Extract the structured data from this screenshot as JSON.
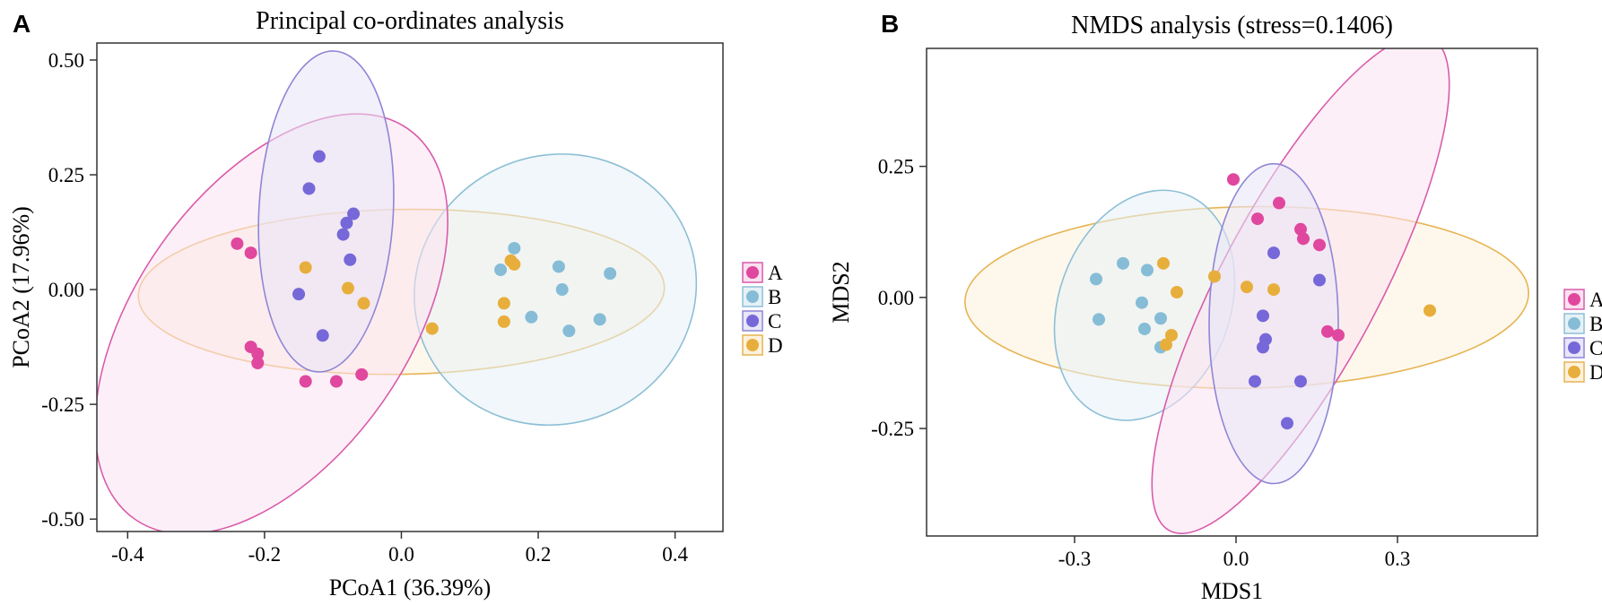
{
  "figure": {
    "groups": [
      {
        "key": "A",
        "label": "A",
        "color": "#e0479e",
        "fill": "#fbe1f0",
        "stroke": "#d85cab"
      },
      {
        "key": "B",
        "label": "B",
        "color": "#86bcd6",
        "fill": "#e6f1f6",
        "stroke": "#8dbfd6"
      },
      {
        "key": "C",
        "label": "C",
        "color": "#7668d8",
        "fill": "#e8e6f8",
        "stroke": "#8f86d6"
      },
      {
        "key": "D",
        "label": "D",
        "color": "#e8ae3c",
        "fill": "#fdf2dd",
        "stroke": "#e6b453"
      }
    ]
  },
  "chart_data": [
    {
      "panel": "A",
      "type": "scatter",
      "title": "Principal co-ordinates analysis",
      "xlabel": "PCoA1 (36.39%)",
      "ylabel": "PCoA2 (17.96%)",
      "xlim": [
        -0.445,
        0.47
      ],
      "ylim": [
        -0.527,
        0.537
      ],
      "xticks": [
        -0.4,
        -0.2,
        0.0,
        0.2,
        0.4
      ],
      "xtick_labels": [
        "-0.4",
        "-0.2",
        "0.0",
        "0.2",
        "0.4"
      ],
      "yticks": [
        -0.5,
        -0.25,
        0.0,
        0.25,
        0.5
      ],
      "ytick_labels": [
        "-0.50",
        "-0.25",
        "0.00",
        "0.25",
        "0.50"
      ],
      "grid": false,
      "legend_position": "right",
      "series": [
        {
          "group": "A",
          "points": [
            [
              -0.24,
              0.1
            ],
            [
              -0.22,
              0.08
            ],
            [
              -0.22,
              -0.125
            ],
            [
              -0.21,
              -0.14
            ],
            [
              -0.21,
              -0.16
            ],
            [
              -0.14,
              -0.2
            ],
            [
              -0.095,
              -0.2
            ],
            [
              -0.058,
              -0.185
            ]
          ],
          "ellipse": {
            "cx": -0.19,
            "cy": -0.075,
            "rx": 0.31,
            "ry": 0.165,
            "angle": -55
          }
        },
        {
          "group": "B",
          "points": [
            [
              0.145,
              0.043
            ],
            [
              0.165,
              0.09
            ],
            [
              0.23,
              0.05
            ],
            [
              0.235,
              0.0
            ],
            [
              0.305,
              0.035
            ],
            [
              0.19,
              -0.06
            ],
            [
              0.245,
              -0.09
            ],
            [
              0.29,
              -0.065
            ]
          ],
          "ellipse": {
            "cx": 0.225,
            "cy": 0.0,
            "rx": 0.175,
            "ry": 0.19,
            "angle": -25
          }
        },
        {
          "group": "C",
          "points": [
            [
              -0.12,
              0.29
            ],
            [
              -0.135,
              0.22
            ],
            [
              -0.07,
              0.165
            ],
            [
              -0.08,
              0.145
            ],
            [
              -0.085,
              0.12
            ],
            [
              -0.075,
              0.065
            ],
            [
              -0.15,
              -0.01
            ],
            [
              -0.115,
              -0.1
            ]
          ],
          "ellipse": {
            "cx": -0.11,
            "cy": 0.17,
            "rx": 0.325,
            "ry": 0.095,
            "angle": -87
          }
        },
        {
          "group": "D",
          "points": [
            [
              -0.14,
              0.048
            ],
            [
              -0.078,
              0.003
            ],
            [
              -0.055,
              -0.03
            ],
            [
              0.045,
              -0.085
            ],
            [
              0.15,
              -0.03
            ],
            [
              0.15,
              -0.07
            ],
            [
              0.16,
              0.063
            ],
            [
              0.165,
              0.055
            ]
          ],
          "ellipse": {
            "cx": 0.0,
            "cy": -0.005,
            "rx": 0.38,
            "ry": 0.175,
            "angle": -1
          }
        }
      ]
    },
    {
      "panel": "B",
      "type": "scatter",
      "title": "NMDS analysis (stress=0.1406)",
      "xlabel": "MDS1",
      "ylabel": "MDS2",
      "xlim": [
        -0.575,
        0.56
      ],
      "ylim": [
        -0.455,
        0.475
      ],
      "xticks": [
        -0.3,
        0.0,
        0.3
      ],
      "xtick_labels": [
        "-0.3",
        "0.0",
        "0.3"
      ],
      "yticks": [
        -0.25,
        0.0,
        0.25
      ],
      "ytick_labels": [
        "-0.25",
        "0.00",
        "0.25"
      ],
      "grid": false,
      "legend_position": "right",
      "series": [
        {
          "group": "A",
          "points": [
            [
              -0.005,
              0.225
            ],
            [
              0.08,
              0.18
            ],
            [
              0.04,
              0.15
            ],
            [
              0.12,
              0.13
            ],
            [
              0.125,
              0.112
            ],
            [
              0.155,
              0.1
            ],
            [
              0.17,
              -0.065
            ],
            [
              0.19,
              -0.072
            ]
          ],
          "ellipse": {
            "cx": 0.12,
            "cy": 0.025,
            "rx": 0.39,
            "ry": 0.11,
            "angle": -62
          }
        },
        {
          "group": "B",
          "points": [
            [
              -0.26,
              0.035
            ],
            [
              -0.21,
              0.065
            ],
            [
              -0.165,
              0.052
            ],
            [
              -0.175,
              -0.01
            ],
            [
              -0.14,
              -0.04
            ],
            [
              -0.255,
              -0.042
            ],
            [
              -0.17,
              -0.06
            ],
            [
              -0.14,
              -0.095
            ]
          ],
          "ellipse": {
            "cx": -0.17,
            "cy": -0.015,
            "rx": 0.175,
            "ry": 0.125,
            "angle": -70
          }
        },
        {
          "group": "C",
          "points": [
            [
              0.07,
              0.085
            ],
            [
              0.155,
              0.033
            ],
            [
              0.05,
              -0.035
            ],
            [
              0.055,
              -0.08
            ],
            [
              0.05,
              -0.095
            ],
            [
              0.035,
              -0.16
            ],
            [
              0.12,
              -0.16
            ],
            [
              0.095,
              -0.24
            ]
          ],
          "ellipse": {
            "cx": 0.07,
            "cy": -0.05,
            "rx": 0.305,
            "ry": 0.12,
            "angle": -90
          }
        },
        {
          "group": "D",
          "points": [
            [
              -0.135,
              0.065
            ],
            [
              -0.04,
              0.04
            ],
            [
              -0.11,
              0.01
            ],
            [
              0.02,
              0.02
            ],
            [
              0.07,
              0.015
            ],
            [
              -0.12,
              -0.072
            ],
            [
              -0.13,
              -0.09
            ],
            [
              0.36,
              -0.025
            ]
          ],
          "ellipse": {
            "cx": 0.02,
            "cy": 0.0,
            "rx": 0.515,
            "ry": 0.17,
            "angle": -1
          }
        }
      ]
    }
  ]
}
